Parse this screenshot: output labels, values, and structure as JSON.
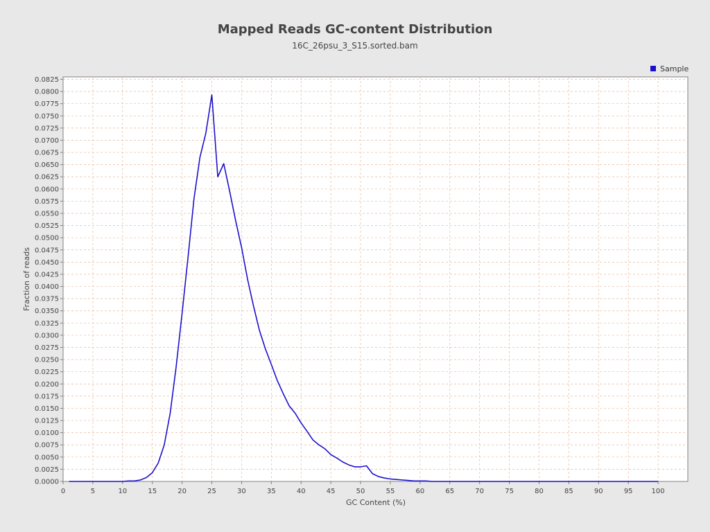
{
  "chart_data": {
    "type": "line",
    "title": "Mapped Reads GC-content Distribution",
    "subtitle": "16C_26psu_3_S15.sorted.bam",
    "xlabel": "GC Content (%)",
    "ylabel": "Fraction of reads",
    "xlim": [
      0,
      105
    ],
    "ylim": [
      0,
      0.083
    ],
    "xticks": [
      0,
      5,
      10,
      15,
      20,
      25,
      30,
      35,
      40,
      45,
      50,
      55,
      60,
      65,
      70,
      75,
      80,
      85,
      90,
      95,
      100
    ],
    "yticks": [
      "0.0000",
      "0.0025",
      "0.0050",
      "0.0075",
      "0.0100",
      "0.0125",
      "0.0150",
      "0.0175",
      "0.0200",
      "0.0225",
      "0.0250",
      "0.0275",
      "0.0300",
      "0.0325",
      "0.0350",
      "0.0375",
      "0.0400",
      "0.0425",
      "0.0450",
      "0.0475",
      "0.0500",
      "0.0525",
      "0.0550",
      "0.0575",
      "0.0600",
      "0.0625",
      "0.0650",
      "0.0675",
      "0.0700",
      "0.0725",
      "0.0750",
      "0.0775",
      "0.0800",
      "0.0825"
    ],
    "grid": true,
    "legend_position": "top-right",
    "series": [
      {
        "name": "Sample",
        "color": "#1a0fcc",
        "x": [
          1,
          2,
          3,
          4,
          5,
          6,
          7,
          8,
          9,
          10,
          11,
          12,
          13,
          14,
          15,
          16,
          17,
          18,
          19,
          20,
          21,
          22,
          23,
          24,
          25,
          26,
          27,
          28,
          29,
          30,
          31,
          32,
          33,
          34,
          35,
          36,
          37,
          38,
          39,
          40,
          41,
          42,
          43,
          44,
          45,
          46,
          47,
          48,
          49,
          50,
          51,
          52,
          53,
          54,
          55,
          56,
          57,
          58,
          59,
          60,
          61,
          62,
          63,
          64,
          65,
          66,
          67,
          68,
          69,
          70,
          71,
          72,
          73,
          74,
          75,
          76,
          77,
          78,
          79,
          80,
          81,
          82,
          83,
          84,
          85,
          86,
          87,
          88,
          89,
          90,
          91,
          92,
          93,
          94,
          95,
          96,
          97,
          98,
          99,
          100
        ],
        "values": [
          0,
          0,
          0,
          0,
          0,
          0,
          0,
          0,
          0,
          0,
          0.0001,
          0.0001,
          0.0003,
          0.0008,
          0.0018,
          0.0038,
          0.0075,
          0.014,
          0.0235,
          0.0345,
          0.046,
          0.058,
          0.0665,
          0.0715,
          0.0793,
          0.0625,
          0.0652,
          0.0595,
          0.0535,
          0.048,
          0.0415,
          0.036,
          0.031,
          0.0272,
          0.024,
          0.0207,
          0.018,
          0.0155,
          0.014,
          0.012,
          0.0103,
          0.0085,
          0.0075,
          0.0067,
          0.0055,
          0.0048,
          0.004,
          0.0034,
          0.003,
          0.003,
          0.0032,
          0.0016,
          0.001,
          0.0007,
          0.0005,
          0.0004,
          0.0003,
          0.0002,
          0.0001,
          0.0001,
          0.0001,
          0,
          0,
          0,
          0,
          0,
          0,
          0,
          0,
          0,
          0,
          0,
          0,
          0,
          0,
          0,
          0,
          0,
          0,
          0,
          0,
          0,
          0,
          0,
          0,
          0,
          0,
          0,
          0,
          0,
          0,
          0,
          0,
          0,
          0,
          0,
          0,
          0,
          0,
          0
        ]
      }
    ]
  },
  "colors": {
    "background": "#e8e8e8",
    "plot_background": "#ffffff",
    "grid": "#e8b89a",
    "line": "#1a0fcc"
  }
}
